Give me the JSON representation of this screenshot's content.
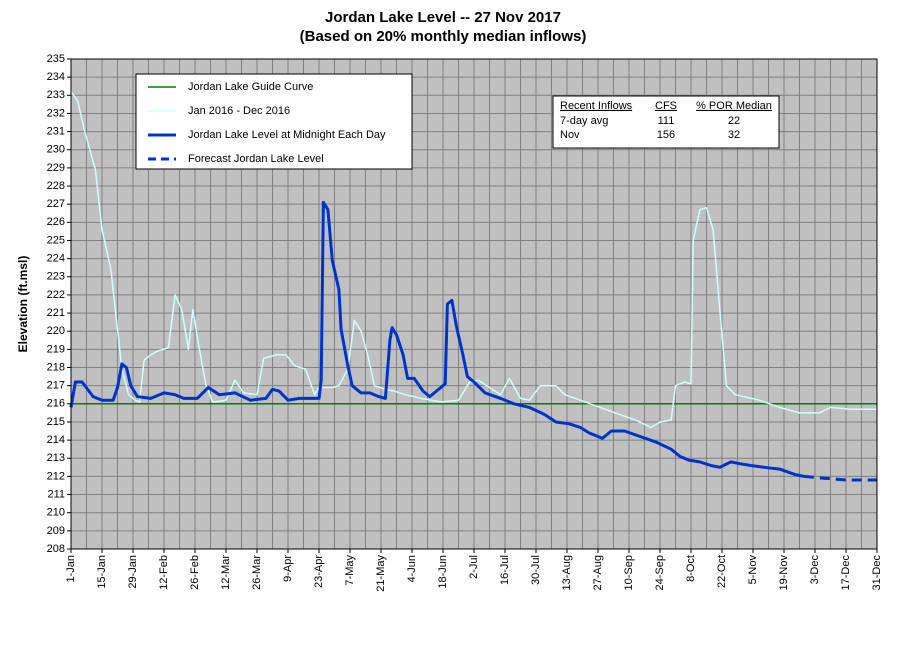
{
  "chart_data": {
    "type": "line",
    "title": "Jordan Lake Level -- 27 Nov 2017",
    "subtitle": "(Based on 20% monthly median inflows)",
    "y_label": "Elevation (ft.msl)",
    "xlim": [
      0,
      364
    ],
    "ylim": [
      208,
      235
    ],
    "xticks": [
      {
        "value": 0,
        "label": "1-Jan"
      },
      {
        "value": 14,
        "label": "15-Jan"
      },
      {
        "value": 28,
        "label": "29-Jan"
      },
      {
        "value": 42,
        "label": "12-Feb"
      },
      {
        "value": 56,
        "label": "26-Feb"
      },
      {
        "value": 70,
        "label": "12-Mar"
      },
      {
        "value": 84,
        "label": "26-Mar"
      },
      {
        "value": 98,
        "label": "9-Apr"
      },
      {
        "value": 112,
        "label": "23-Apr"
      },
      {
        "value": 126,
        "label": "7-May"
      },
      {
        "value": 140,
        "label": "21-May"
      },
      {
        "value": 154,
        "label": "4-Jun"
      },
      {
        "value": 168,
        "label": "18-Jun"
      },
      {
        "value": 182,
        "label": "2-Jul"
      },
      {
        "value": 196,
        "label": "16-Jul"
      },
      {
        "value": 210,
        "label": "30-Jul"
      },
      {
        "value": 224,
        "label": "13-Aug"
      },
      {
        "value": 238,
        "label": "27-Aug"
      },
      {
        "value": 252,
        "label": "10-Sep"
      },
      {
        "value": 266,
        "label": "24-Sep"
      },
      {
        "value": 280,
        "label": "8-Oct"
      },
      {
        "value": 294,
        "label": "22-Oct"
      },
      {
        "value": 308,
        "label": "5-Nov"
      },
      {
        "value": 322,
        "label": "19-Nov"
      },
      {
        "value": 336,
        "label": "3-Dec"
      },
      {
        "value": 350,
        "label": "17-Dec"
      },
      {
        "value": 364,
        "label": "31-Dec"
      }
    ],
    "xminorticks": [
      7,
      21,
      35,
      49,
      63,
      77,
      91,
      105,
      119,
      133,
      147,
      161,
      175,
      189,
      203,
      217,
      231,
      245,
      259,
      273,
      287,
      301,
      315,
      329,
      343,
      357
    ],
    "yticks": [
      208,
      209,
      210,
      211,
      212,
      213,
      214,
      215,
      216,
      217,
      218,
      219,
      220,
      221,
      222,
      223,
      224,
      225,
      226,
      227,
      228,
      229,
      230,
      231,
      232,
      233,
      234,
      235
    ],
    "grid": true,
    "series": [
      {
        "name": "Jordan Lake Guide Curve",
        "color": "#008000",
        "width": 1.5,
        "dashed": false,
        "x": [
          0,
          364
        ],
        "values": [
          216,
          216
        ]
      },
      {
        "name": "Jan 2016 - Dec 2016",
        "color": "#ccffff",
        "width": 1.5,
        "dashed": false,
        "x": [
          0,
          3,
          6,
          11,
          14,
          18,
          21,
          23,
          26,
          29,
          31,
          33,
          36,
          39,
          44,
          47,
          50,
          53,
          55,
          58,
          61,
          64,
          70,
          74,
          78,
          84,
          87,
          93,
          97,
          101,
          106,
          110,
          112,
          118,
          121,
          125,
          128,
          131,
          134,
          137,
          142,
          146,
          151,
          158,
          167,
          175,
          180,
          184,
          189,
          194,
          198,
          203,
          207,
          212,
          219,
          223,
          230,
          239,
          248,
          255,
          262,
          266,
          271,
          273,
          277,
          280,
          281,
          284,
          287,
          290,
          293,
          296,
          300,
          311,
          320,
          329,
          338,
          343,
          352,
          364
        ],
        "values": [
          233.2,
          232.7,
          231.1,
          228.9,
          225.6,
          223.4,
          220.1,
          217.9,
          216.5,
          216.2,
          216.1,
          218.4,
          218.7,
          218.9,
          219.1,
          222.0,
          221.2,
          219.0,
          221.2,
          219.0,
          217.0,
          216.1,
          216.2,
          217.3,
          216.6,
          216.5,
          218.5,
          218.7,
          218.7,
          218.1,
          217.9,
          216.5,
          216.9,
          216.9,
          217.0,
          217.9,
          220.6,
          220.0,
          218.7,
          217.0,
          216.8,
          216.7,
          216.5,
          216.3,
          216.1,
          216.2,
          217.2,
          217.3,
          216.9,
          216.5,
          217.4,
          216.3,
          216.2,
          217.0,
          217.0,
          216.5,
          216.2,
          215.8,
          215.4,
          215.1,
          214.7,
          215.0,
          215.1,
          217.0,
          217.2,
          217.1,
          225.0,
          226.7,
          226.8,
          225.6,
          221.2,
          217.0,
          216.5,
          216.2,
          215.8,
          215.5,
          215.5,
          215.8,
          215.7,
          215.7
        ]
      },
      {
        "name": "Jordan Lake Level at Midnight Each Day",
        "color": "#0033cc",
        "width": 3,
        "dashed": false,
        "x": [
          0,
          2,
          5,
          10,
          14,
          19,
          21,
          23,
          25,
          27,
          30,
          36,
          42,
          47,
          51,
          57,
          62,
          67,
          74,
          81,
          88,
          91,
          94,
          98,
          103,
          112,
          113,
          114,
          116,
          118,
          121,
          122,
          125,
          127,
          131,
          135,
          139,
          142,
          144,
          145,
          147,
          150,
          152,
          155,
          159,
          162,
          167,
          169,
          170,
          172,
          174,
          177,
          179,
          182,
          187,
          194,
          200,
          207,
          214,
          219,
          225,
          230,
          234,
          240,
          244,
          250,
          257,
          264,
          271,
          275,
          279,
          284,
          289,
          293,
          298,
          302,
          307,
          313,
          320,
          327,
          331
        ],
        "values": [
          215.8,
          217.2,
          217.2,
          216.4,
          216.2,
          216.2,
          216.9,
          218.2,
          218.0,
          217.0,
          216.4,
          216.3,
          216.6,
          216.5,
          216.3,
          216.3,
          216.9,
          216.5,
          216.6,
          216.2,
          216.3,
          216.8,
          216.7,
          216.2,
          216.3,
          216.3,
          217.3,
          227.1,
          226.7,
          223.9,
          222.3,
          220.1,
          218.1,
          217.0,
          216.6,
          216.6,
          216.4,
          216.3,
          219.5,
          220.2,
          219.8,
          218.7,
          217.4,
          217.4,
          216.7,
          216.4,
          216.9,
          217.1,
          221.5,
          221.7,
          220.3,
          218.7,
          217.5,
          217.2,
          216.6,
          216.3,
          216.0,
          215.8,
          215.4,
          215.0,
          214.9,
          214.7,
          214.4,
          214.1,
          214.5,
          214.5,
          214.2,
          213.9,
          213.5,
          213.1,
          212.9,
          212.8,
          212.6,
          212.5,
          212.8,
          212.7,
          212.6,
          212.5,
          212.4,
          212.1,
          212.0
        ]
      },
      {
        "name": "Forecast Jordan Lake Level",
        "color": "#0033cc",
        "width": 3,
        "dashed": true,
        "x": [
          331,
          340,
          350,
          364
        ],
        "values": [
          212.0,
          211.9,
          211.8,
          211.8
        ]
      }
    ],
    "table": {
      "header": [
        "Recent Inflows",
        "CFS",
        "% POR Median"
      ],
      "rows": [
        [
          "7-day avg",
          111,
          22
        ],
        [
          "Nov",
          156,
          32
        ]
      ]
    }
  }
}
